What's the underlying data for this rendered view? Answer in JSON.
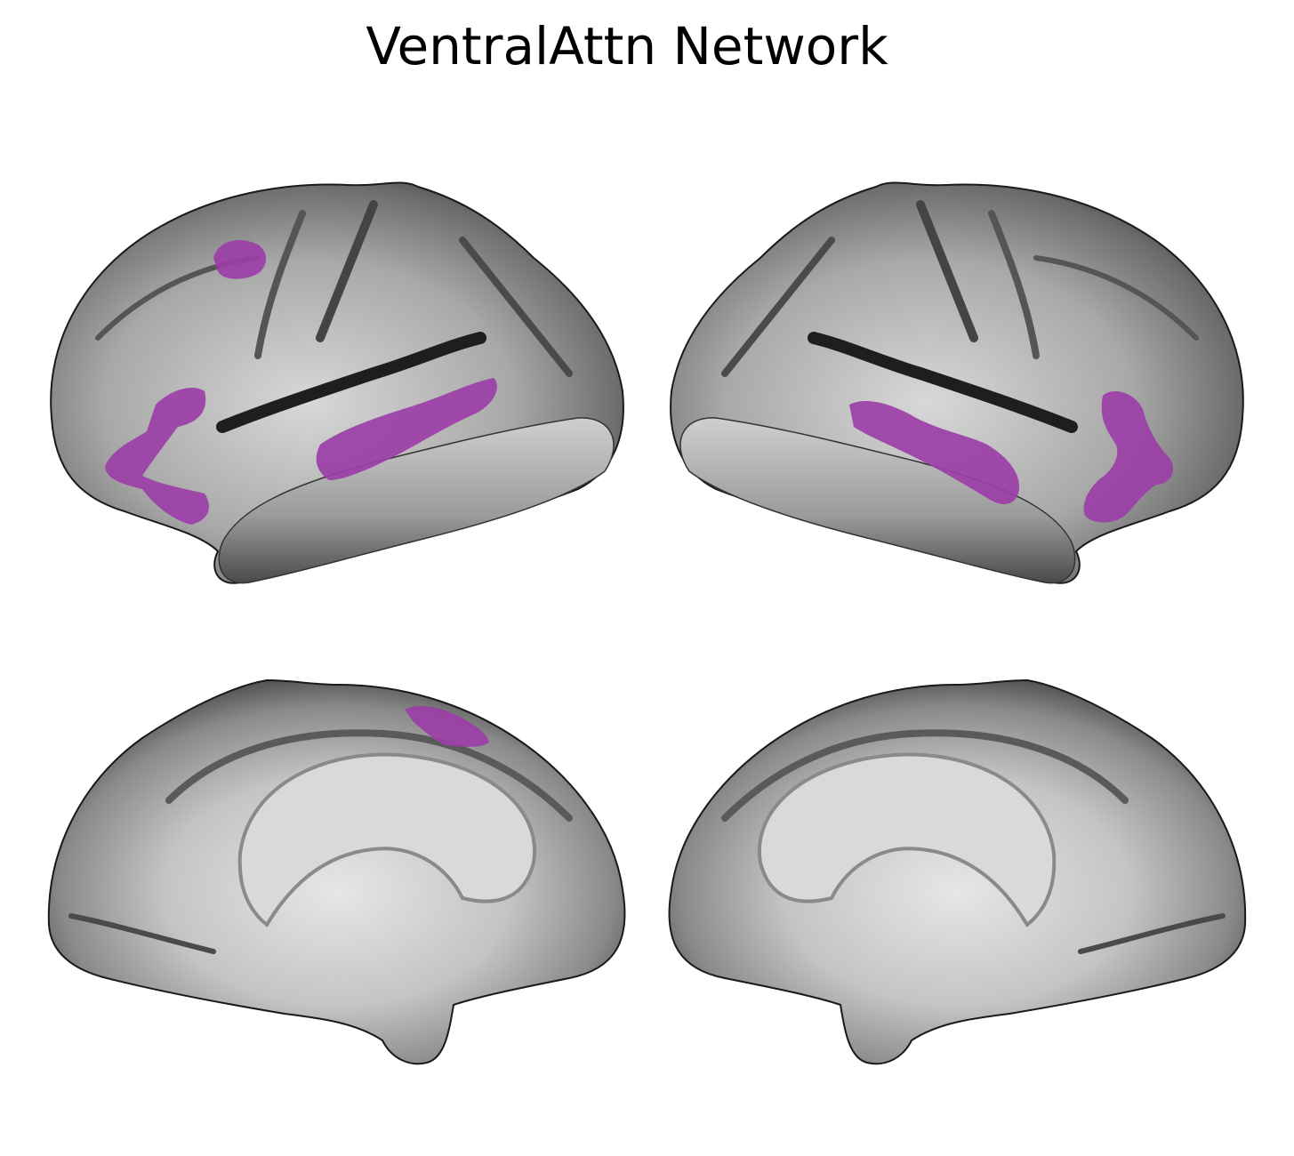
{
  "title": "VentralAttn Network",
  "colors": {
    "network": "#9b3fa7",
    "cortex_base": "#9a9a9a",
    "background": "#ffffff"
  },
  "views": [
    {
      "name": "left-lateral",
      "regions": [
        "prefrontal-dorsal",
        "frontal-operculum",
        "superior-temporal"
      ]
    },
    {
      "name": "right-lateral",
      "regions": [
        "superior-temporal",
        "frontal-operculum"
      ]
    },
    {
      "name": "left-medial",
      "regions": [
        "medial-frontal"
      ]
    },
    {
      "name": "right-medial",
      "regions": []
    }
  ]
}
